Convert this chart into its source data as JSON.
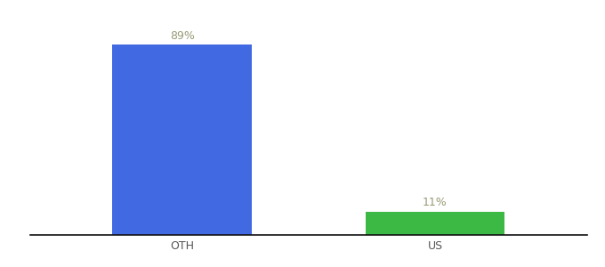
{
  "categories": [
    "OTH",
    "US"
  ],
  "values": [
    89,
    11
  ],
  "bar_colors": [
    "#4169e1",
    "#3cb944"
  ],
  "label_texts": [
    "89%",
    "11%"
  ],
  "background_color": "#ffffff",
  "ylim": [
    0,
    100
  ],
  "figsize": [
    6.8,
    3.0
  ],
  "dpi": 100,
  "label_fontsize": 9,
  "tick_fontsize": 9,
  "label_color": "#999977"
}
